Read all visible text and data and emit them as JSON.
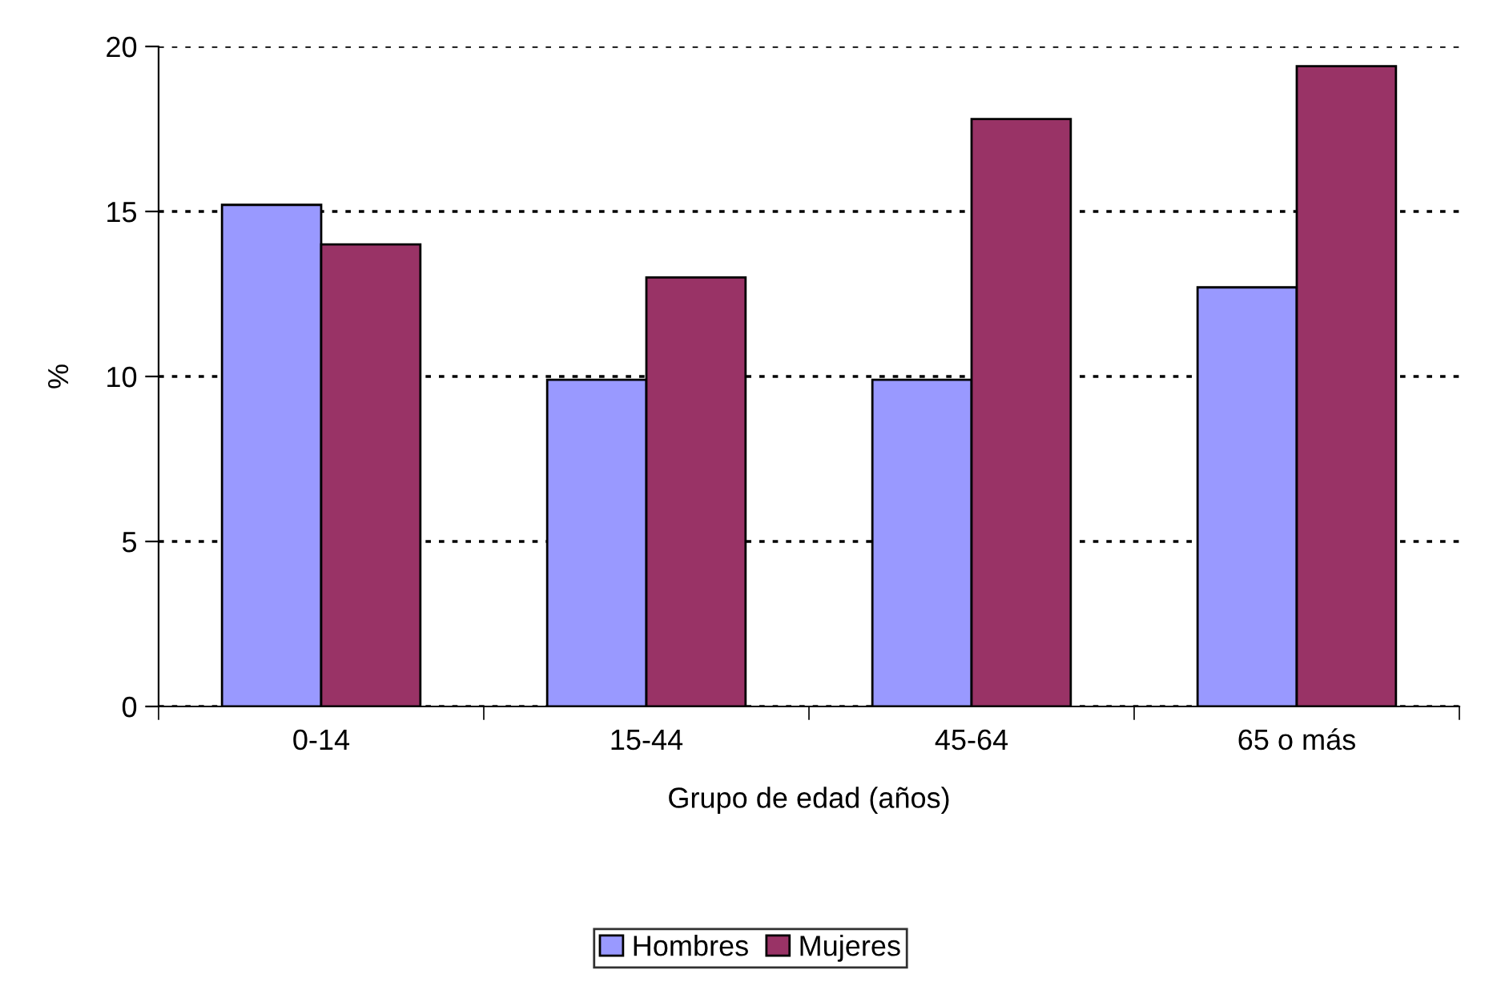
{
  "chart_data": {
    "type": "bar",
    "xlabel": "Grupo de edad (años)",
    "ylabel": "%",
    "categories": [
      "0-14",
      "15-44",
      "45-64",
      "65 o más"
    ],
    "series": [
      {
        "name": "Hombres",
        "color": "#9999ff",
        "values": [
          15.2,
          9.9,
          9.9,
          12.7
        ]
      },
      {
        "name": "Mujeres",
        "color": "#993366",
        "values": [
          14.0,
          13.0,
          17.8,
          19.4
        ]
      }
    ],
    "ylim": [
      0,
      20
    ],
    "yticks": [
      0,
      5,
      10,
      15,
      20
    ],
    "grid": "y",
    "legend": "bottom"
  }
}
